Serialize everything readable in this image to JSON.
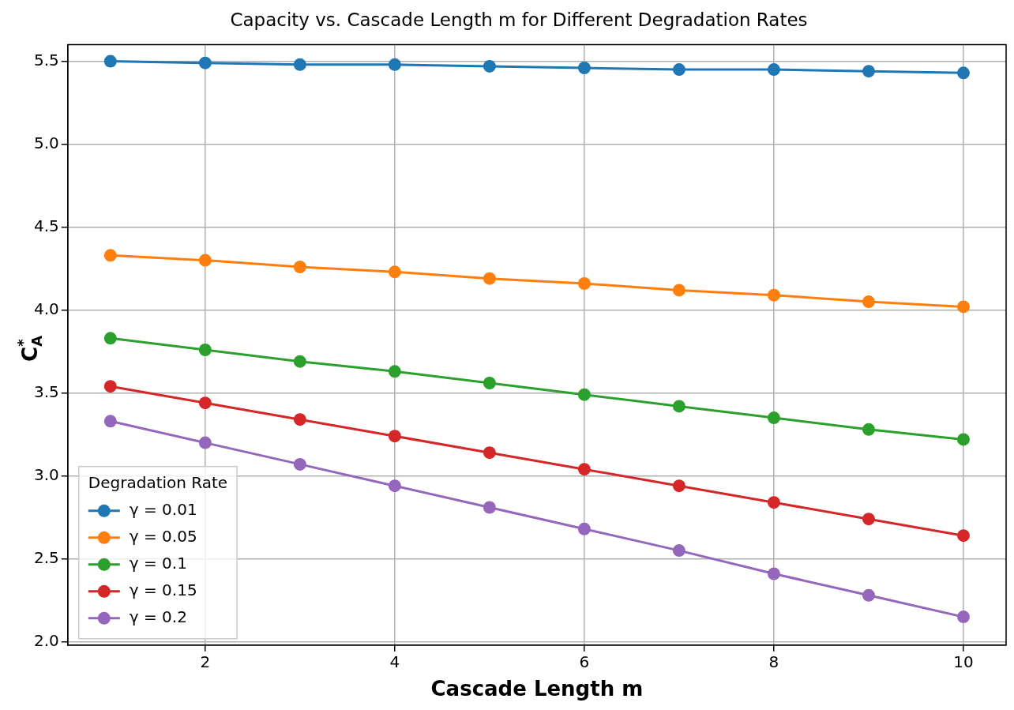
{
  "chart_data": {
    "type": "line",
    "title": "Capacity vs. Cascade Length m for Different Degradation Rates",
    "xlabel": "Cascade Length m",
    "ylabel": "C$_{A}$$^{*}$",
    "legend_title": "Degradation Rate",
    "x": [
      1,
      2,
      3,
      4,
      5,
      6,
      7,
      8,
      9,
      10
    ],
    "series": [
      {
        "name": "γ = 0.01",
        "color": "#1f77b4",
        "values": [
          5.5,
          5.49,
          5.48,
          5.48,
          5.47,
          5.46,
          5.45,
          5.45,
          5.44,
          5.43
        ]
      },
      {
        "name": "γ = 0.05",
        "color": "#ff7f0e",
        "values": [
          4.33,
          4.3,
          4.26,
          4.23,
          4.19,
          4.16,
          4.12,
          4.09,
          4.05,
          4.02
        ]
      },
      {
        "name": "γ = 0.1",
        "color": "#2ca02c",
        "values": [
          3.83,
          3.76,
          3.69,
          3.63,
          3.56,
          3.49,
          3.42,
          3.35,
          3.28,
          3.22
        ]
      },
      {
        "name": "γ = 0.15",
        "color": "#d62728",
        "values": [
          3.54,
          3.44,
          3.34,
          3.24,
          3.14,
          3.04,
          2.94,
          2.84,
          2.74,
          2.64
        ]
      },
      {
        "name": "γ = 0.2",
        "color": "#9467bd",
        "values": [
          3.33,
          3.2,
          3.07,
          2.94,
          2.81,
          2.68,
          2.55,
          2.41,
          2.28,
          2.15
        ]
      }
    ],
    "xlim": [
      0.55,
      10.45
    ],
    "xticks": [
      2,
      4,
      6,
      8,
      10
    ],
    "ylim": [
      1.98,
      5.6
    ],
    "yticks": [
      {
        "value": 2,
        "label": "2.0"
      },
      {
        "value": 2.5,
        "label": "2.5"
      },
      {
        "value": 3,
        "label": "3.0"
      },
      {
        "value": 3.5,
        "label": "3.5"
      },
      {
        "value": 4,
        "label": "4.0"
      },
      {
        "value": 4.5,
        "label": "4.5"
      },
      {
        "value": 5,
        "label": "5.0"
      },
      {
        "value": 5.5,
        "label": "5.5"
      }
    ],
    "grid": true,
    "legend": "bottom left",
    "marker": "circle",
    "line_style": "solid"
  }
}
